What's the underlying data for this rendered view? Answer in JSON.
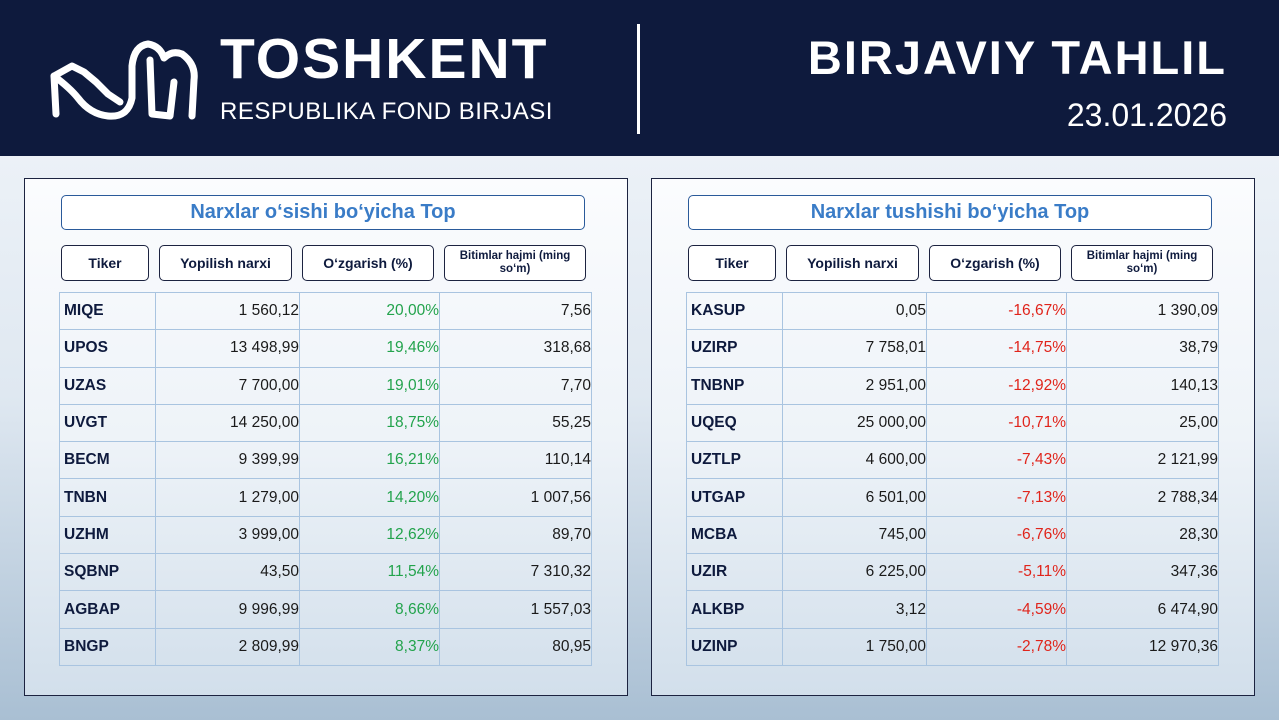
{
  "header": {
    "logo_icon": "toshkent-exchange-logo-icon",
    "brand_title": "TOSHKENT",
    "brand_subtitle": "RESPUBLIKA FOND BIRJASI",
    "report_title": "BIRJAVIY TAHLIL",
    "report_date": "23.01.2026"
  },
  "colors": {
    "header_bg": "#0e1a3d",
    "title_accent": "#3a7cc7",
    "positive": "#22a34c",
    "negative": "#e0241b"
  },
  "gainers": {
    "title": "Narxlar o‘sishi bo‘yicha Top",
    "columns": [
      "Tiker",
      "Yopilish narxi",
      "O‘zgarish (%)",
      "Bitimlar hajmi (ming so‘m)"
    ],
    "rows": [
      {
        "ticker": "MIQE",
        "close": "1 560,12",
        "change": "20,00%",
        "volume": "7,56"
      },
      {
        "ticker": "UPOS",
        "close": "13 498,99",
        "change": "19,46%",
        "volume": "318,68"
      },
      {
        "ticker": "UZAS",
        "close": "7 700,00",
        "change": "19,01%",
        "volume": "7,70"
      },
      {
        "ticker": "UVGT",
        "close": "14 250,00",
        "change": "18,75%",
        "volume": "55,25"
      },
      {
        "ticker": "BECM",
        "close": "9 399,99",
        "change": "16,21%",
        "volume": "110,14"
      },
      {
        "ticker": "TNBN",
        "close": "1 279,00",
        "change": "14,20%",
        "volume": "1 007,56"
      },
      {
        "ticker": "UZHM",
        "close": "3 999,00",
        "change": "12,62%",
        "volume": "89,70"
      },
      {
        "ticker": "SQBNP",
        "close": "43,50",
        "change": "11,54%",
        "volume": "7 310,32"
      },
      {
        "ticker": "AGBAP",
        "close": "9 996,99",
        "change": "8,66%",
        "volume": "1 557,03"
      },
      {
        "ticker": "BNGP",
        "close": "2 809,99",
        "change": "8,37%",
        "volume": "80,95"
      }
    ]
  },
  "losers": {
    "title": "Narxlar tushishi bo‘yicha Top",
    "columns": [
      "Tiker",
      "Yopilish narxi",
      "O‘zgarish (%)",
      "Bitimlar hajmi (ming so‘m)"
    ],
    "rows": [
      {
        "ticker": "KASUP",
        "close": "0,05",
        "change": "-16,67%",
        "volume": "1 390,09"
      },
      {
        "ticker": "UZIRP",
        "close": "7 758,01",
        "change": "-14,75%",
        "volume": "38,79"
      },
      {
        "ticker": "TNBNP",
        "close": "2 951,00",
        "change": "-12,92%",
        "volume": "140,13"
      },
      {
        "ticker": "UQEQ",
        "close": "25 000,00",
        "change": "-10,71%",
        "volume": "25,00"
      },
      {
        "ticker": "UZTLP",
        "close": "4 600,00",
        "change": "-7,43%",
        "volume": "2 121,99"
      },
      {
        "ticker": "UTGAP",
        "close": "6 501,00",
        "change": "-7,13%",
        "volume": "2 788,34"
      },
      {
        "ticker": "MCBA",
        "close": "745,00",
        "change": "-6,76%",
        "volume": "28,30"
      },
      {
        "ticker": "UZIR",
        "close": "6 225,00",
        "change": "-5,11%",
        "volume": "347,36"
      },
      {
        "ticker": "ALKBP",
        "close": "3,12",
        "change": "-4,59%",
        "volume": "6 474,90"
      },
      {
        "ticker": "UZINP",
        "close": "1 750,00",
        "change": "-2,78%",
        "volume": "12 970,36"
      }
    ]
  }
}
